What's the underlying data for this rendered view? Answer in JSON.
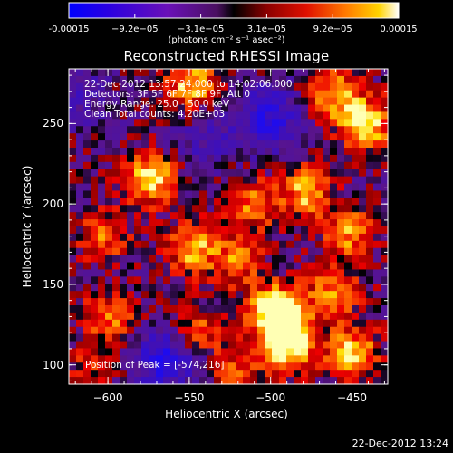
{
  "colorbar": {
    "tick_labels": [
      "-0.00015",
      "−9.2e−05",
      "−3.1e−05",
      "3.1e−05",
      "9.2e−05",
      "0.00015"
    ],
    "unit_label": "(photons cm⁻² s⁻¹ asec⁻²)",
    "range": [
      -0.00015,
      0.00015
    ]
  },
  "info_block": {
    "line1": "22-Dec-2012 13:57:24.000 to 14:02:06.000",
    "line2": "Detectors: 3F 5F 6F 7F 8F 9F, Att 0",
    "line3": "Energy Range: 25.0 - 50.0 keV",
    "line4": "Clean     Total counts: 4.20E+03"
  },
  "peak_label": "Position of Peak = [-574,216]",
  "footer_timestamp": "22-Dec-2012 13:24",
  "chart_data": {
    "type": "heatmap",
    "title": "Reconstructed RHESSI Image",
    "xlabel": "Heliocentric X (arcsec)",
    "ylabel": "Heliocentric Y (arcsec)",
    "xlim": [
      -624,
      -428
    ],
    "ylim": [
      88,
      284
    ],
    "xticks": [
      -600,
      -550,
      -500,
      -450
    ],
    "xtick_labels": [
      "−600",
      "−550",
      "−500",
      "−450"
    ],
    "yticks": [
      100,
      150,
      200,
      250
    ],
    "ytick_labels": [
      "100",
      "150",
      "200",
      "250"
    ],
    "peak_position": [
      -574,
      216
    ],
    "colormap": "heat",
    "grid": false,
    "blobs": [
      {
        "x": -574,
        "y": 216,
        "amp": 1.0
      },
      {
        "x": -548,
        "y": 274,
        "amp": 0.85
      },
      {
        "x": -441,
        "y": 250,
        "amp": 0.95
      },
      {
        "x": -462,
        "y": 268,
        "amp": 0.75
      },
      {
        "x": -602,
        "y": 180,
        "amp": 0.55
      },
      {
        "x": -548,
        "y": 172,
        "amp": 0.75
      },
      {
        "x": -510,
        "y": 200,
        "amp": 0.6
      },
      {
        "x": -478,
        "y": 208,
        "amp": 0.75
      },
      {
        "x": -452,
        "y": 182,
        "amp": 0.7
      },
      {
        "x": -520,
        "y": 165,
        "amp": 0.55
      },
      {
        "x": -500,
        "y": 135,
        "amp": 0.7
      },
      {
        "x": -462,
        "y": 145,
        "amp": 0.65
      },
      {
        "x": -492,
        "y": 128,
        "amp": 0.95
      },
      {
        "x": -598,
        "y": 130,
        "amp": 0.6
      },
      {
        "x": -545,
        "y": 122,
        "amp": 0.55
      },
      {
        "x": -488,
        "y": 110,
        "amp": 0.9
      },
      {
        "x": -450,
        "y": 108,
        "amp": 0.85
      },
      {
        "x": -520,
        "y": 98,
        "amp": 0.5
      },
      {
        "x": -610,
        "y": 100,
        "amp": 0.35
      }
    ],
    "negatives": [
      {
        "x": -500,
        "y": 253,
        "amp": -0.75
      },
      {
        "x": -565,
        "y": 103,
        "amp": -0.8
      },
      {
        "x": -616,
        "y": 268,
        "amp": -0.35
      },
      {
        "x": -540,
        "y": 240,
        "amp": -0.35
      }
    ]
  }
}
